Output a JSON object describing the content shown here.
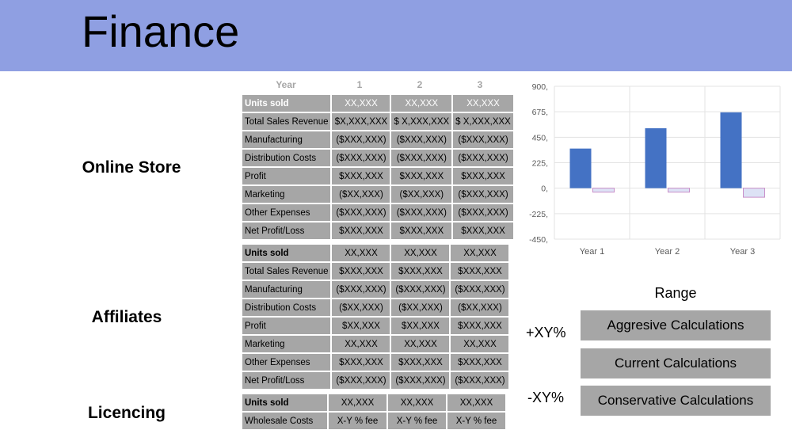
{
  "title": "Finance",
  "sections": {
    "online_store": "Online Store",
    "affiliates": "Affiliates",
    "licencing": "Licencing"
  },
  "year_header": [
    "Year",
    "1",
    "2",
    "3"
  ],
  "tables": {
    "online_store": [
      [
        "Units sold",
        "XX,XXX",
        "XX,XXX",
        "XX,XXX"
      ],
      [
        "Total Sales Revenue",
        "$X,XXX,XXX",
        "$ X,XXX,XXX",
        "$ X,XXX,XXX"
      ],
      [
        "Manufacturing",
        "($XXX,XXX)",
        "($XXX,XXX)",
        "($XXX,XXX)"
      ],
      [
        "Distribution Costs",
        "($XXX,XXX)",
        "($XXX,XXX)",
        "($XXX,XXX)"
      ],
      [
        "Profit",
        "$XXX,XXX",
        "$XXX,XXX",
        "$XXX,XXX"
      ],
      [
        "Marketing",
        "($XX,XXX)",
        "($XX,XXX)",
        "($XXX,XXX)"
      ],
      [
        "Other Expenses",
        "($XXX,XXX)",
        "($XXX,XXX)",
        "($XXX,XXX)"
      ],
      [
        "Net Profit/Loss",
        "$XXX,XXX",
        "$XXX,XXX",
        "$XXX,XXX"
      ]
    ],
    "affiliates": [
      [
        "Units sold",
        "XX,XXX",
        "XX,XXX",
        "XX,XXX"
      ],
      [
        "Total Sales Revenue",
        "$XXX,XXX",
        "$XXX,XXX",
        "$XXX,XXX"
      ],
      [
        "Manufacturing",
        "($XXX,XXX)",
        "($XXX,XXX)",
        "($XXX,XXX)"
      ],
      [
        "Distribution Costs",
        "($XX,XXX)",
        "($XX,XXX)",
        "($XX,XXX)"
      ],
      [
        "Profit",
        "$XX,XXX",
        "$XX,XXX",
        "$XXX,XXX"
      ],
      [
        "Marketing",
        "XX,XXX",
        "XX,XXX",
        "XX,XXX"
      ],
      [
        "Other Expenses",
        "$XXX,XXX",
        "$XXX,XXX",
        "$XXX,XXX"
      ],
      [
        "Net Profit/Loss",
        "($XXX,XXX)",
        "($XXX,XXX)",
        "($XXX,XXX)"
      ]
    ],
    "licencing": [
      [
        "Units sold",
        "XX,XXX",
        "XX,XXX",
        "XX,XXX"
      ],
      [
        "Wholesale Costs",
        "X-Y % fee",
        "X-Y % fee",
        "X-Y % fee"
      ]
    ]
  },
  "chart_data": {
    "type": "bar",
    "categories": [
      "Year 1",
      "Year 2",
      "Year 3"
    ],
    "series": [
      {
        "values": [
          350,
          530,
          670
        ],
        "color": "#4472c4"
      },
      {
        "values": [
          -35,
          -35,
          -80
        ],
        "color": "#dde2f5"
      }
    ],
    "yticks": [
      "900,",
      "675,",
      "450,",
      "225,",
      "0,",
      "-225,",
      "-450,"
    ],
    "ylim": [
      -450,
      900
    ],
    "grid": true
  },
  "range": {
    "title": "Range",
    "plus": "+XY%",
    "minus": "-XY%",
    "buttons": [
      "Aggresive Calculations",
      "Current Calculations",
      "Conservative Calculations"
    ]
  },
  "colors": {
    "header_bg": "#8f9fe2",
    "cell_bg": "#a6a6a6",
    "bar_primary": "#4472c4",
    "bar_secondary": "#dde2f5",
    "bar_secondary_border": "#c98fc9"
  }
}
